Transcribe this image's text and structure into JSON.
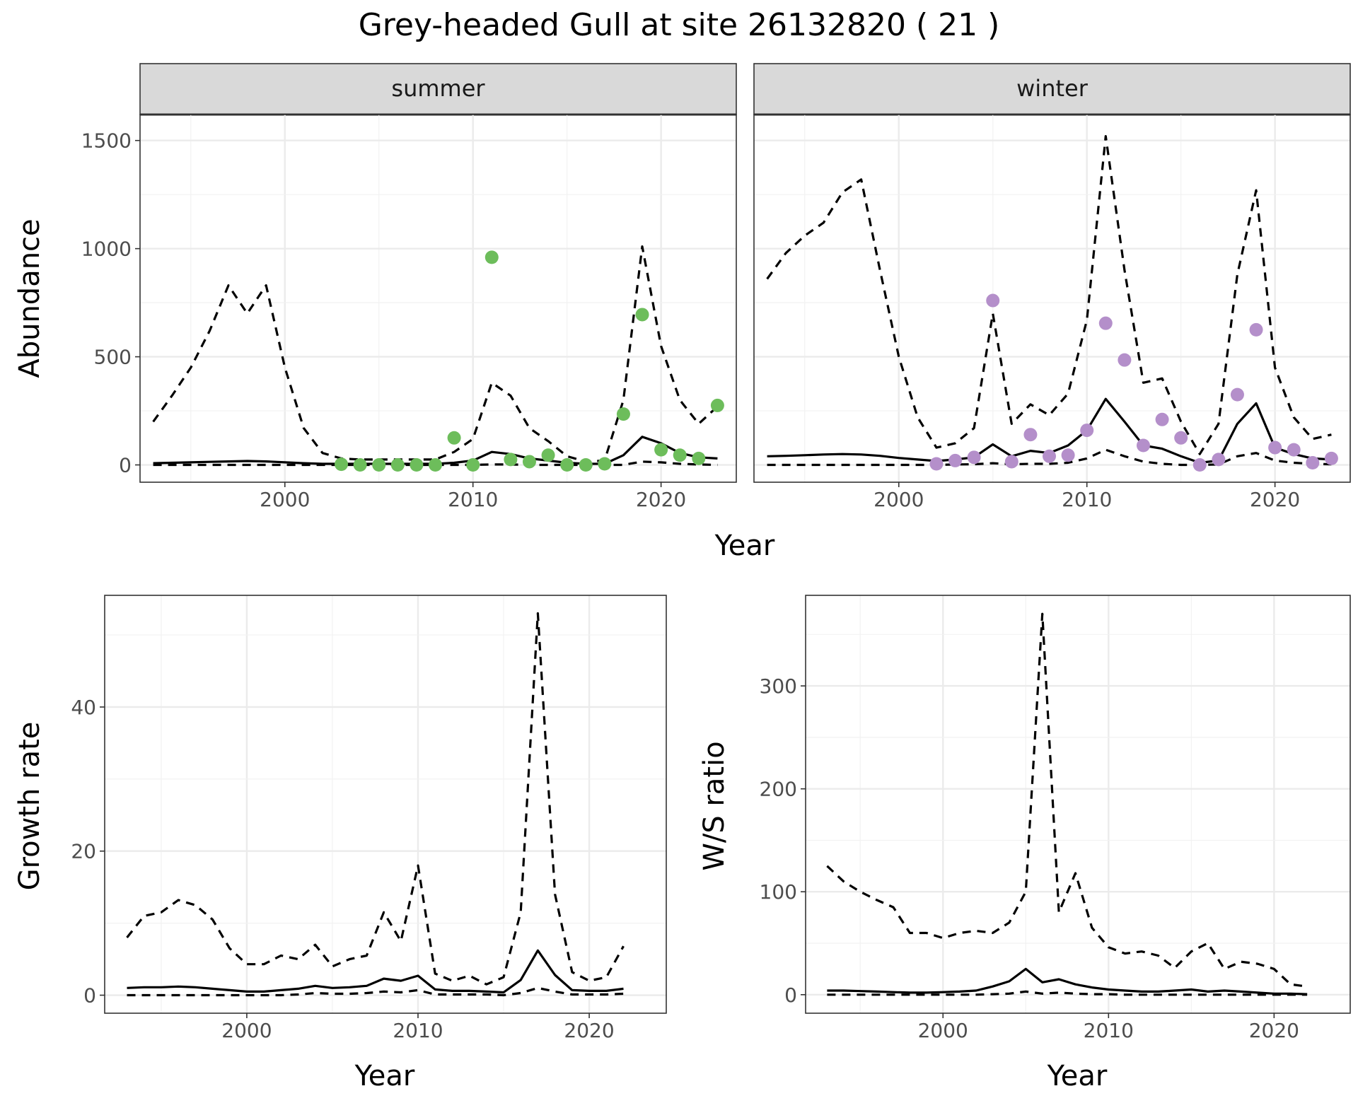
{
  "figure": {
    "title": "Grey-headed Gull at site 26132820 ( 21 )"
  },
  "colors": {
    "summer_points": "#6dbd5b",
    "winter_points": "#b48fca",
    "lines": "#000000"
  },
  "chart_data": [
    {
      "type": "line",
      "id": "abundance",
      "facets": [
        "summer",
        "winter"
      ],
      "xlabel": "Year",
      "ylabel": "Abundance",
      "xlim": [
        1992.3,
        2024.0
      ],
      "ylim": [
        -80,
        1620
      ],
      "xticks": [
        2000,
        2010,
        2020
      ],
      "yticks": [
        0,
        500,
        1000,
        1500
      ],
      "grid": true,
      "panels": [
        {
          "facet": "summer",
          "x": [
            1993,
            1994,
            1995,
            1996,
            1997,
            1998,
            1999,
            2000,
            2001,
            2002,
            2003,
            2004,
            2005,
            2006,
            2007,
            2008,
            2009,
            2010,
            2011,
            2012,
            2013,
            2014,
            2015,
            2016,
            2017,
            2018,
            2019,
            2020,
            2021,
            2022,
            2023
          ],
          "median": [
            8,
            10,
            12,
            14,
            16,
            18,
            16,
            12,
            8,
            5,
            5,
            5,
            5,
            5,
            5,
            5,
            10,
            20,
            60,
            50,
            30,
            20,
            10,
            5,
            5,
            45,
            130,
            100,
            55,
            35,
            30
          ],
          "lower": [
            0,
            0,
            0,
            0,
            0,
            0,
            0,
            0,
            0,
            0,
            0,
            0,
            0,
            0,
            0,
            0,
            0,
            0,
            2,
            2,
            0,
            0,
            0,
            0,
            0,
            0,
            15,
            12,
            5,
            2,
            0
          ],
          "upper": [
            200,
            320,
            450,
            620,
            830,
            700,
            830,
            450,
            170,
            55,
            30,
            25,
            25,
            25,
            25,
            25,
            60,
            120,
            380,
            320,
            170,
            110,
            40,
            15,
            20,
            300,
            1010,
            550,
            300,
            190,
            270
          ],
          "points_x": [
            2003,
            2004,
            2005,
            2006,
            2007,
            2008,
            2009,
            2010,
            2011,
            2012,
            2013,
            2014,
            2015,
            2016,
            2017,
            2018,
            2019,
            2020,
            2021,
            2022,
            2023
          ],
          "points_y": [
            3,
            0,
            0,
            0,
            0,
            0,
            125,
            0,
            960,
            25,
            15,
            45,
            0,
            0,
            5,
            235,
            695,
            70,
            45,
            30,
            275
          ]
        },
        {
          "facet": "winter",
          "x": [
            1993,
            1994,
            1995,
            1996,
            1997,
            1998,
            1999,
            2000,
            2001,
            2002,
            2003,
            2004,
            2005,
            2006,
            2007,
            2008,
            2009,
            2010,
            2011,
            2012,
            2013,
            2014,
            2015,
            2016,
            2017,
            2018,
            2019,
            2020,
            2021,
            2022,
            2023
          ],
          "median": [
            40,
            42,
            45,
            48,
            50,
            48,
            42,
            32,
            25,
            18,
            25,
            35,
            95,
            40,
            65,
            55,
            90,
            160,
            305,
            200,
            90,
            75,
            40,
            10,
            20,
            190,
            285,
            80,
            50,
            30,
            25
          ],
          "lower": [
            0,
            0,
            0,
            0,
            0,
            0,
            0,
            0,
            0,
            0,
            2,
            3,
            8,
            3,
            5,
            5,
            10,
            30,
            70,
            40,
            15,
            5,
            0,
            0,
            2,
            40,
            55,
            20,
            10,
            5,
            3
          ],
          "upper": [
            860,
            980,
            1060,
            1120,
            1260,
            1320,
            900,
            500,
            220,
            80,
            100,
            170,
            700,
            190,
            280,
            230,
            330,
            670,
            1520,
            900,
            380,
            400,
            200,
            50,
            190,
            880,
            1270,
            450,
            220,
            120,
            140
          ],
          "points_x": [
            2002,
            2003,
            2004,
            2005,
            2006,
            2007,
            2008,
            2009,
            2010,
            2011,
            2012,
            2013,
            2014,
            2015,
            2016,
            2017,
            2018,
            2019,
            2020,
            2021,
            2022,
            2023
          ],
          "points_y": [
            5,
            20,
            35,
            760,
            15,
            140,
            40,
            45,
            160,
            655,
            485,
            90,
            210,
            125,
            0,
            25,
            325,
            625,
            80,
            70,
            10,
            30
          ]
        }
      ]
    },
    {
      "type": "line",
      "id": "growth_rate",
      "xlabel": "Year",
      "ylabel": "Growth rate",
      "xlim": [
        1991.7,
        2024.5
      ],
      "ylim": [
        -2.5,
        55.5
      ],
      "xticks": [
        2000,
        2010,
        2020
      ],
      "yticks": [
        0,
        20,
        40
      ],
      "grid": true,
      "x": [
        1993,
        1994,
        1995,
        1996,
        1997,
        1998,
        1999,
        2000,
        2001,
        2002,
        2003,
        2004,
        2005,
        2006,
        2007,
        2008,
        2009,
        2010,
        2011,
        2012,
        2013,
        2014,
        2015,
        2016,
        2017,
        2018,
        2019,
        2020,
        2021,
        2022
      ],
      "median": [
        1.0,
        1.1,
        1.1,
        1.2,
        1.1,
        0.9,
        0.7,
        0.5,
        0.5,
        0.7,
        0.9,
        1.3,
        1.0,
        1.1,
        1.3,
        2.3,
        2.0,
        2.7,
        0.8,
        0.6,
        0.6,
        0.5,
        0.4,
        2.1,
        6.2,
        2.8,
        0.7,
        0.6,
        0.6,
        0.9
      ],
      "lower": [
        0,
        0,
        0,
        0,
        0,
        0,
        0,
        0,
        0,
        0,
        0.1,
        0.3,
        0.2,
        0.2,
        0.3,
        0.5,
        0.4,
        0.7,
        0.1,
        0.1,
        0.1,
        0.1,
        0,
        0.3,
        1.0,
        0.5,
        0.1,
        0.1,
        0.1,
        0.2
      ],
      "upper": [
        8,
        11,
        11.5,
        13.2,
        12.5,
        10.5,
        6.5,
        4.3,
        4.3,
        5.5,
        5,
        7,
        4,
        5,
        5.5,
        11.5,
        7.5,
        18,
        3,
        2,
        2.7,
        1.5,
        2.5,
        11.5,
        53,
        14,
        3.2,
        2,
        2.5,
        6.8
      ]
    },
    {
      "type": "line",
      "id": "ws_ratio",
      "xlabel": "Year",
      "ylabel": "W/S ratio",
      "xlim": [
        1991.7,
        2024.6
      ],
      "ylim": [
        -18,
        388
      ],
      "xticks": [
        2000,
        2010,
        2020
      ],
      "yticks": [
        0,
        100,
        200,
        300
      ],
      "grid": true,
      "x": [
        1993,
        1994,
        1995,
        1996,
        1997,
        1998,
        1999,
        2000,
        2001,
        2002,
        2003,
        2004,
        2005,
        2006,
        2007,
        2008,
        2009,
        2010,
        2011,
        2012,
        2013,
        2014,
        2015,
        2016,
        2017,
        2018,
        2019,
        2020,
        2021,
        2022
      ],
      "median": [
        4,
        4,
        3.5,
        3,
        2.5,
        2,
        2,
        2.5,
        3,
        4,
        8,
        13,
        25,
        12,
        15,
        10,
        7,
        5,
        4,
        3,
        3,
        4,
        5,
        3,
        4,
        3,
        2,
        1,
        1,
        0.5
      ],
      "lower": [
        0,
        0,
        0,
        0,
        0,
        0,
        0,
        0,
        0,
        0,
        0.5,
        1,
        3,
        1,
        2,
        1,
        0.5,
        0.5,
        0,
        0,
        0,
        0,
        0,
        0,
        0,
        0,
        0,
        0,
        0,
        0
      ],
      "upper": [
        125,
        110,
        100,
        92,
        85,
        60,
        60,
        55,
        60,
        62,
        60,
        70,
        100,
        370,
        80,
        118,
        65,
        46,
        40,
        42,
        38,
        26,
        42,
        50,
        25,
        32,
        30,
        25,
        10,
        8
      ]
    }
  ]
}
